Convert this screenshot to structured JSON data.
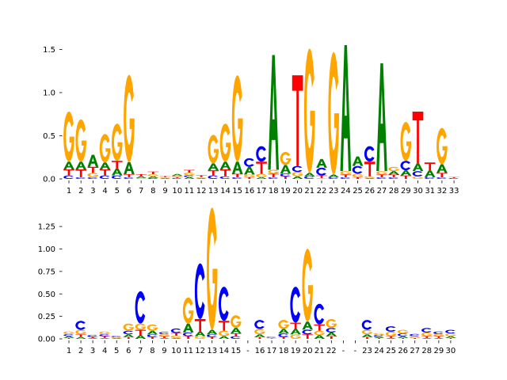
{
  "colors": {
    "A": "#008000",
    "C": "#0000ff",
    "G": "#ffa500",
    "T": "#ff0000"
  },
  "chart_data": [
    {
      "type": "sequence-logo",
      "ylim": [
        0,
        1.55
      ],
      "yticks": [
        0,
        0.5,
        1.0,
        1.5
      ],
      "yticklabels": [
        "0.0",
        "0.5",
        "1.0",
        "1.5"
      ],
      "xticklabels": [
        "1",
        "2",
        "3",
        "4",
        "5",
        "6",
        "7",
        "8",
        "9",
        "10",
        "11",
        "12",
        "13",
        "14",
        "15",
        "16",
        "17",
        "18",
        "19",
        "20",
        "21",
        "22",
        "23",
        "24",
        "25",
        "26",
        "27",
        "28",
        "29",
        "30",
        "31",
        "32",
        "33"
      ],
      "positions": [
        {
          "C": 0.04,
          "A": 0.09,
          "T": 0.07,
          "G": 0.58
        },
        {
          "C": 0.02,
          "T": 0.09,
          "A": 0.09,
          "G": 0.49
        },
        {
          "C": 0.02,
          "G": 0.05,
          "T": 0.07,
          "A": 0.14
        },
        {
          "C": 0.04,
          "A": 0.08,
          "T": 0.07,
          "G": 0.33
        },
        {
          "C": 0.04,
          "A": 0.08,
          "T": 0.09,
          "G": 0.43
        },
        {
          "C": 0.02,
          "T": 0.035,
          "A": 0.14,
          "G": 1.01
        },
        {
          "G": 0.01,
          "A": 0.02,
          "T": 0.025
        },
        {
          "C": 0.01,
          "A": 0.02,
          "G": 0.025,
          "T": 0.03
        },
        {
          "A": 0.01,
          "G": 0.01,
          "T": 0.012
        },
        {
          "C": 0.01,
          "T": 0.012,
          "G": 0.015,
          "A": 0.02
        },
        {
          "A": 0.02,
          "C": 0.022,
          "G": 0.03,
          "T": 0.032
        },
        {
          "A": 0.01,
          "G": 0.012,
          "T": 0.02
        },
        {
          "C": 0.04,
          "A": 0.08,
          "T": 0.06,
          "G": 0.33
        },
        {
          "C": 0.03,
          "A": 0.09,
          "T": 0.08,
          "G": 0.44
        },
        {
          "C": 0.02,
          "T": 0.04,
          "A": 0.14,
          "G": 1.0
        },
        {
          "T": 0.02,
          "G": 0.03,
          "A": 0.09,
          "C": 0.1
        },
        {
          "A": 0.02,
          "G": 0.04,
          "T": 0.14,
          "C": 0.18
        },
        {
          "C": 0.02,
          "T": 0.04,
          "G": 0.045,
          "A": 1.33
        },
        {
          "T": 0.03,
          "C": 0.032,
          "A": 0.1,
          "G": 0.15
        },
        {
          "A": 0.03,
          "G": 0.05,
          "C": 0.07,
          "T": 1.05
        },
        {
          "C": 0.03,
          "A": 0.04,
          "G": 1.44
        },
        {
          "T": 0.03,
          "G": 0.01,
          "C": 0.09,
          "A": 0.1
        },
        {
          "C": 0.02,
          "A": 0.03,
          "G": 1.42
        },
        {
          "C": 0.02,
          "T": 0.03,
          "G": 0.04,
          "A": 1.46
        },
        {
          "T": 0.02,
          "G": 0.04,
          "C": 0.09,
          "A": 0.11
        },
        {
          "A": 0.01,
          "G": 0.02,
          "T": 0.17,
          "C": 0.18
        },
        {
          "C": 0.02,
          "T": 0.03,
          "G": 0.04,
          "A": 1.25
        },
        {
          "C": 0.02,
          "T": 0.03,
          "A": 0.04,
          "G": 0.05
        },
        {
          "A": 0.06,
          "T": 0.04,
          "C": 0.11,
          "G": 0.45
        },
        {
          "G": 0.03,
          "C": 0.06,
          "A": 0.09,
          "T": 0.6
        },
        {
          "C": 0.02,
          "A": 0.08,
          "T": 0.09
        },
        {
          "C": 0.02,
          "T": 0.05,
          "A": 0.1,
          "G": 0.42
        },
        {
          "C": 0.01,
          "T": 0.012
        }
      ]
    },
    {
      "type": "sequence-logo",
      "ylim": [
        0,
        1.48
      ],
      "yticks": [
        0,
        0.25,
        0.5,
        0.75,
        1.0,
        1.25
      ],
      "yticklabels": [
        "0.00",
        "0.25",
        "0.50",
        "0.75",
        "1.00",
        "1.25"
      ],
      "xticklabels": [
        "1",
        "2",
        "3",
        "4",
        "5",
        "6",
        "7",
        "8",
        "9",
        "10",
        "11",
        "12",
        "13",
        "14",
        "15",
        "-",
        "16",
        "17",
        "18",
        "19",
        "20",
        "21",
        "22",
        "-",
        "-",
        "23",
        "24",
        "25",
        "26",
        "27",
        "28",
        "29",
        "30"
      ],
      "positions": [
        {
          "T": 0.01,
          "A": 0.02,
          "C": 0.022,
          "G": 0.03
        },
        {
          "A": 0.02,
          "T": 0.03,
          "G": 0.05,
          "C": 0.1
        },
        {
          "A": 0.01,
          "T": 0.012,
          "C": 0.02
        },
        {
          "A": 0.01,
          "T": 0.02,
          "C": 0.022,
          "G": 0.03
        },
        {
          "A": 0.01,
          "G": 0.01,
          "C": 0.012
        },
        {
          "T": 0.02,
          "A": 0.03,
          "C": 0.04,
          "G": 0.08
        },
        {
          "A": 0.04,
          "T": 0.06,
          "G": 0.07,
          "C": 0.36
        },
        {
          "T": 0.02,
          "C": 0.03,
          "A": 0.04,
          "G": 0.07
        },
        {
          "A": 0.01,
          "T": 0.02,
          "G": 0.022,
          "C": 0.025
        },
        {
          "A": 0.01,
          "G": 0.025,
          "T": 0.03,
          "C": 0.05
        },
        {
          "T": 0.03,
          "C": 0.04,
          "A": 0.1,
          "G": 0.29
        },
        {
          "G": 0.03,
          "A": 0.05,
          "T": 0.14,
          "C": 0.62
        },
        {
          "T": 0.02,
          "C": 0.03,
          "A": 0.05,
          "G": 1.36
        },
        {
          "A": 0.03,
          "G": 0.06,
          "T": 0.11,
          "C": 0.38
        },
        {
          "C": 0.03,
          "T": 0.032,
          "A": 0.06,
          "G": 0.14
        },
        {},
        {
          "T": 0.02,
          "A": 0.03,
          "G": 0.06,
          "C": 0.1
        },
        {
          "T": 0.005,
          "G": 0.008,
          "C": 0.01
        },
        {
          "T": 0.02,
          "C": 0.04,
          "A": 0.05,
          "G": 0.1
        },
        {
          "G": 0.05,
          "A": 0.06,
          "T": 0.07,
          "C": 0.4
        },
        {
          "T": 0.05,
          "C": 0.052,
          "A": 0.09,
          "G": 0.81
        },
        {
          "A": 0.04,
          "G": 0.05,
          "T": 0.07,
          "C": 0.23
        },
        {
          "T": 0.03,
          "A": 0.04,
          "C": 0.05,
          "G": 0.1
        },
        {},
        {},
        {
          "T": 0.02,
          "A": 0.03,
          "G": 0.05,
          "C": 0.11
        },
        {
          "T": 0.01,
          "A": 0.012,
          "C": 0.02,
          "G": 0.022
        },
        {
          "A": 0.01,
          "T": 0.02,
          "G": 0.05,
          "C": 0.06
        },
        {
          "T": 0.01,
          "A": 0.02,
          "C": 0.03,
          "G": 0.04
        },
        {
          "T": 0.01,
          "G": 0.02,
          "C": 0.025
        },
        {
          "A": 0.01,
          "T": 0.02,
          "G": 0.04,
          "C": 0.05
        },
        {
          "A": 0.01,
          "T": 0.02,
          "G": 0.022,
          "C": 0.03
        },
        {
          "T": 0.01,
          "A": 0.02,
          "G": 0.03,
          "C": 0.04
        }
      ]
    }
  ]
}
